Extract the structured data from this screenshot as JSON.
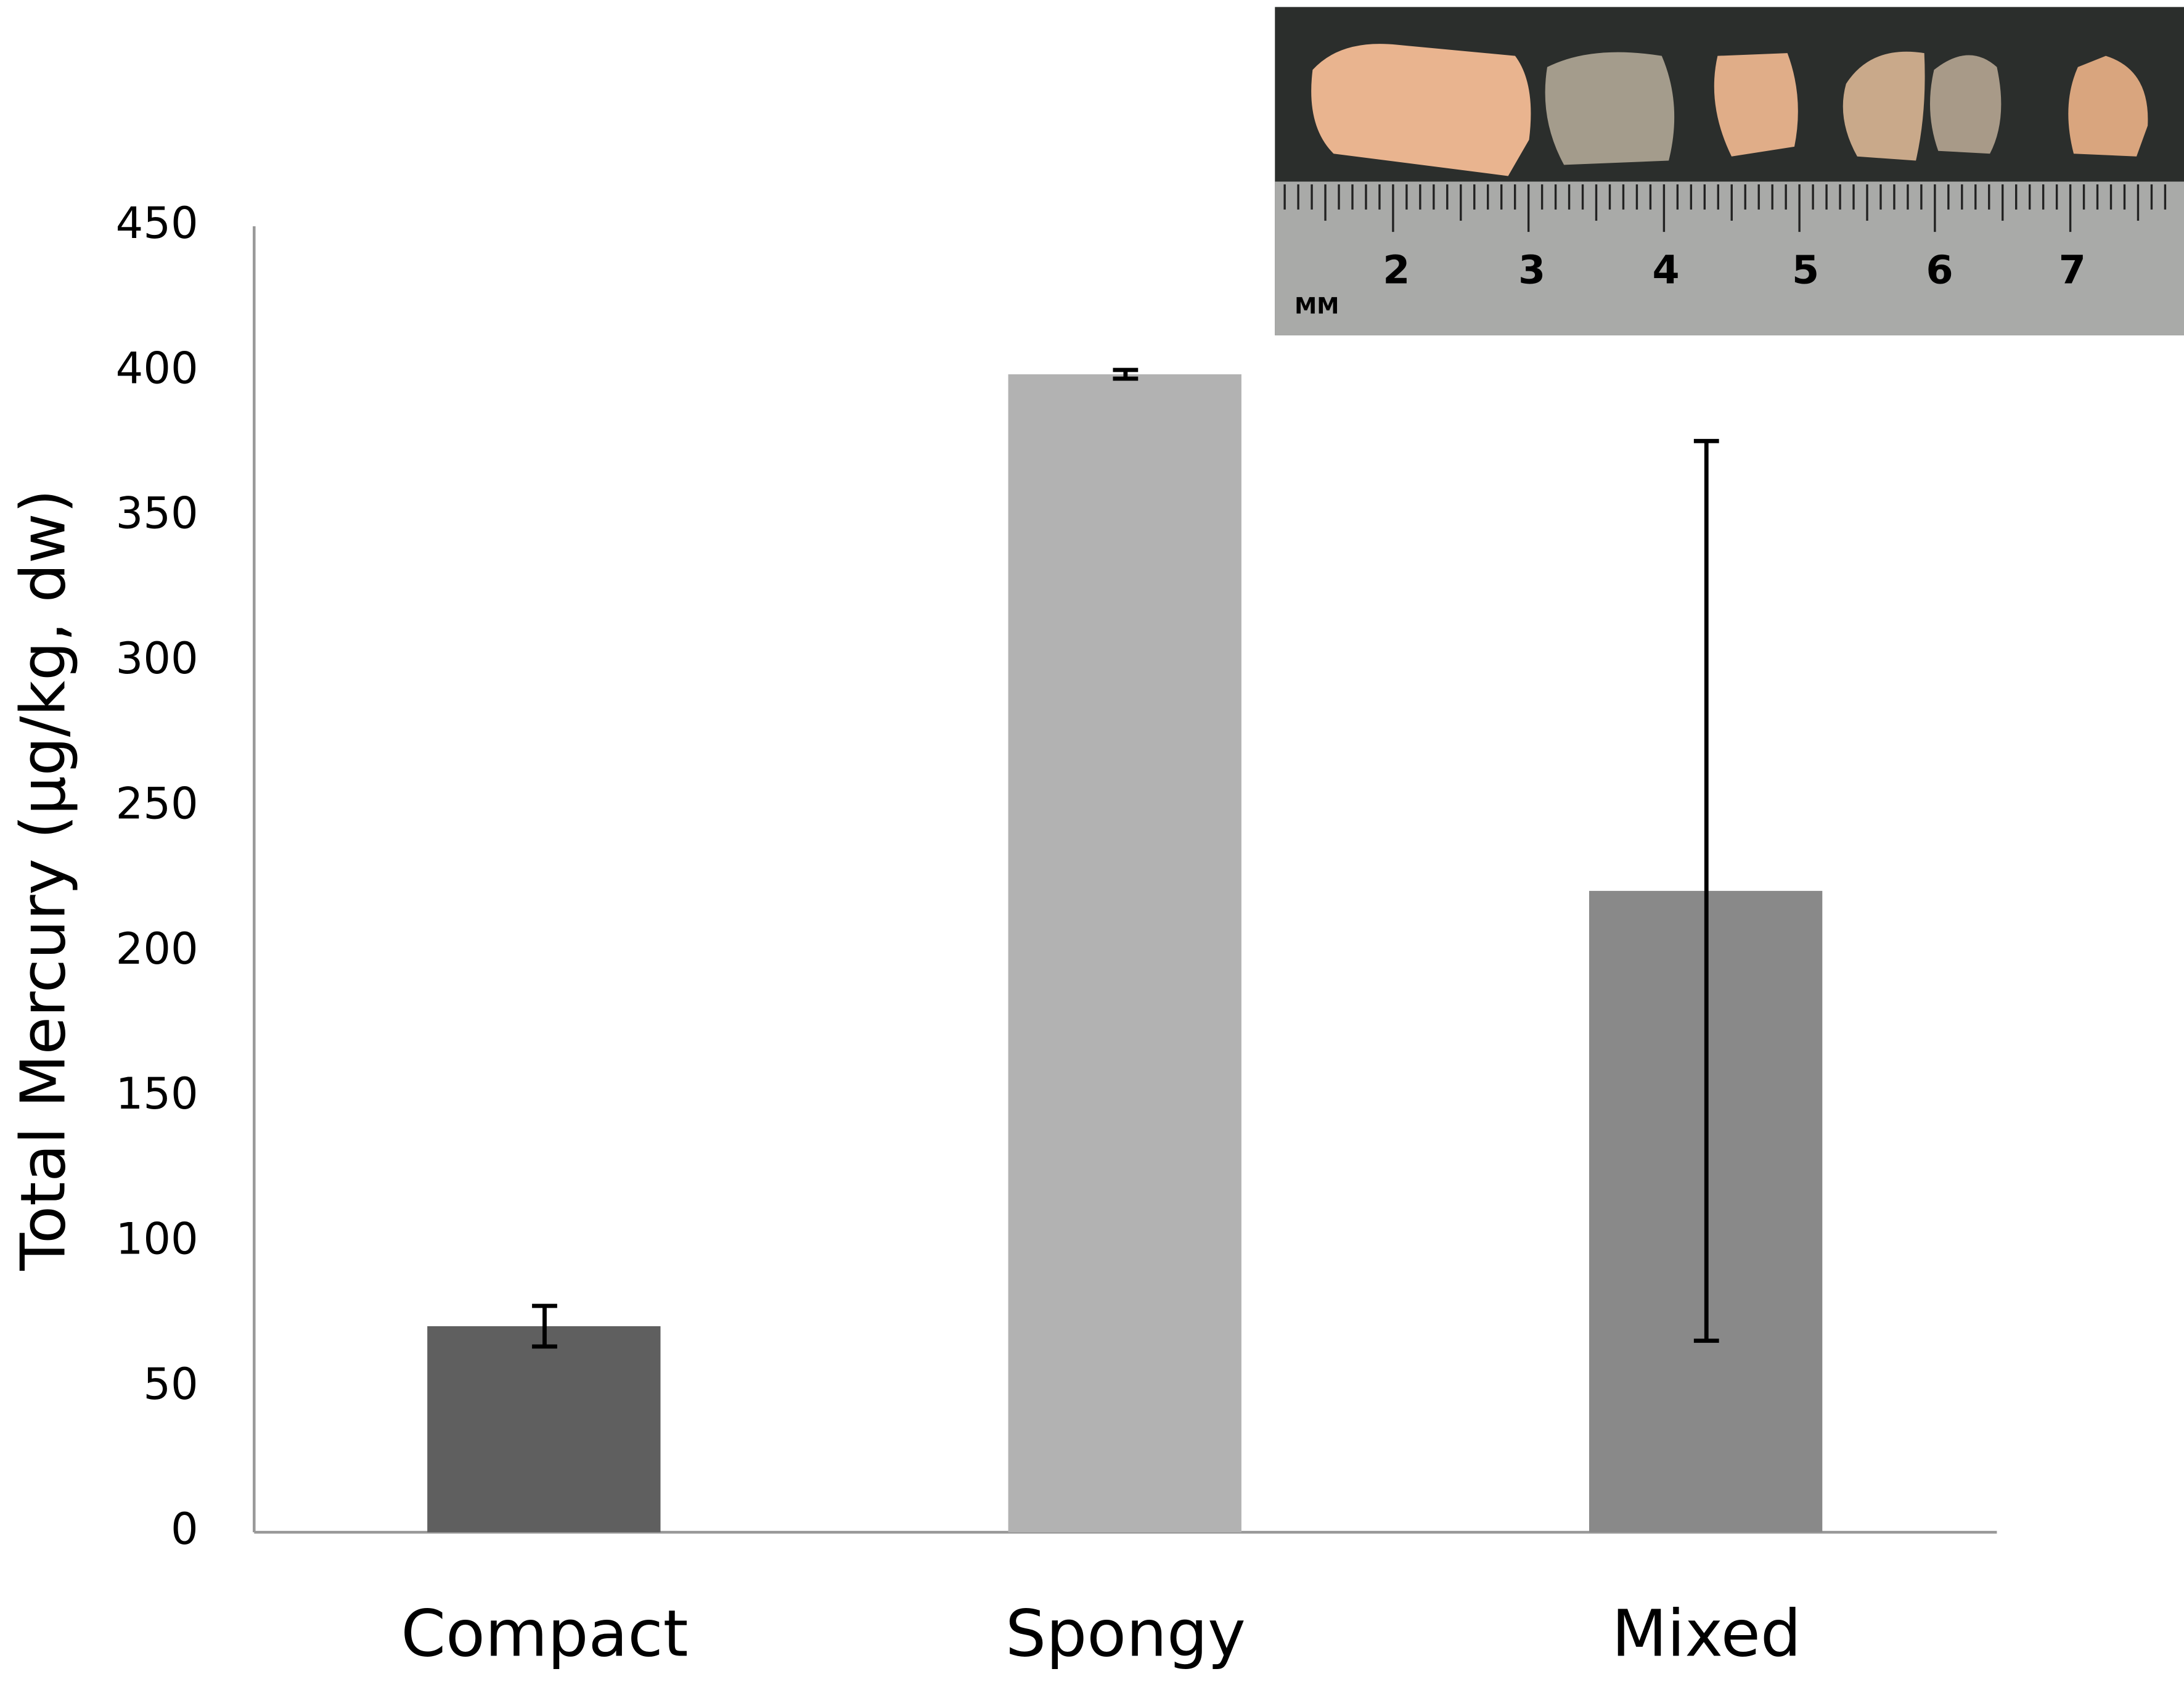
{
  "chart_data": {
    "type": "bar",
    "ylabel": "Total Mercury (µg/kg, dw)",
    "categories": [
      "Compact",
      "Spongy",
      "Mixed"
    ],
    "values": [
      71,
      399,
      221
    ],
    "errors": [
      7,
      1.5,
      155
    ],
    "colors": [
      "#5f5f5f",
      "#b2b2b2",
      "#898989"
    ],
    "error_color": "#000000",
    "ylim": [
      0,
      450
    ],
    "yticks": [
      0,
      50,
      100,
      150,
      200,
      250,
      300,
      350,
      400,
      450
    ],
    "grid": false,
    "photo_ruler_labels": [
      "MM",
      "2",
      "3",
      "4",
      "5",
      "6",
      "7"
    ]
  }
}
